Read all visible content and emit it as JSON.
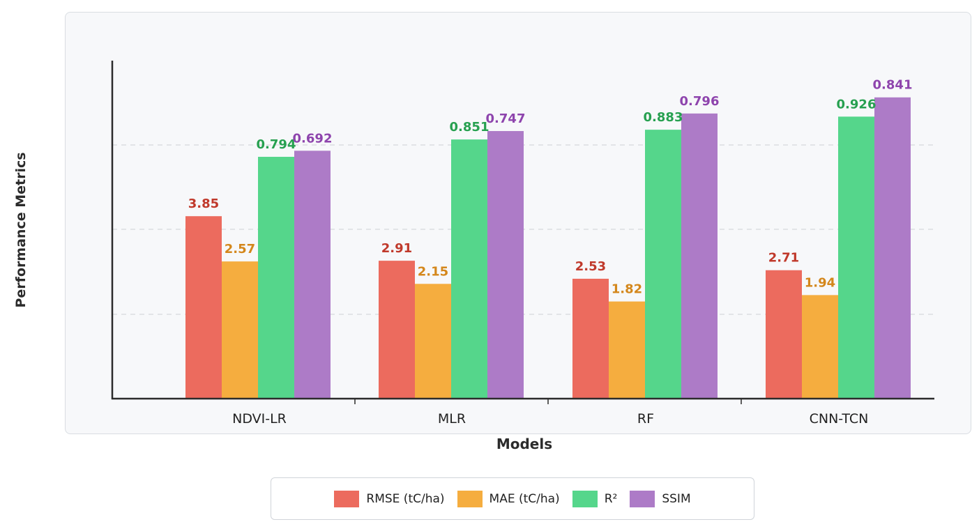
{
  "chart_data": {
    "type": "bar",
    "title": "",
    "xlabel": "Models",
    "ylabel": "Performance Metrics",
    "categories": [
      "NDVI-LR",
      "MLR",
      "RF",
      "CNN-TCN"
    ],
    "ylim": [
      0,
      4
    ],
    "series": [
      {
        "name": "RMSE (tC/ha)",
        "color": "#ec6b5e",
        "label_color": "#c0392b",
        "values": [
          3.85,
          2.91,
          2.53,
          2.71
        ],
        "labels": [
          "3.85",
          "2.91",
          "2.53",
          "2.71"
        ]
      },
      {
        "name": "MAE (tC/ha)",
        "color": "#f5ad3f",
        "label_color": "#d4871c",
        "values": [
          2.57,
          2.15,
          1.82,
          1.94
        ],
        "labels": [
          "2.57",
          "2.15",
          "1.82",
          "1.94"
        ]
      },
      {
        "name": "R²",
        "color": "#55d68b",
        "label_color": "#27a050",
        "values": [
          0.794,
          0.851,
          0.883,
          0.926
        ],
        "labels": [
          "0.794",
          "0.851",
          "0.883",
          "0.926"
        ]
      },
      {
        "name": "SSIM",
        "color": "#ad7bc7",
        "label_color": "#8e44ad",
        "values": [
          0.692,
          0.747,
          0.796,
          0.841
        ],
        "labels": [
          "0.692",
          "0.747",
          "0.796",
          "0.841"
        ]
      }
    ],
    "grid": true,
    "legend": "bottom-center"
  }
}
